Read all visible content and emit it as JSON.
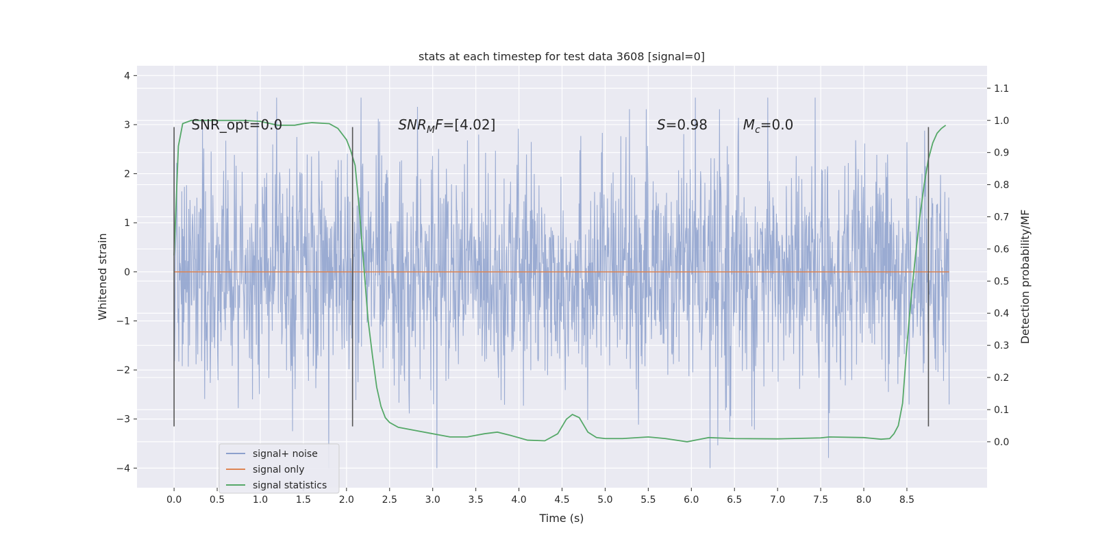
{
  "chart_data": {
    "type": "line",
    "title": "stats at each timestep for test data 3608 [signal=0]",
    "xlabel": "Time (s)",
    "ylabel": "Whitened strain",
    "y2label": "Detection probability/MF",
    "xlim": [
      -0.43,
      9.43
    ],
    "ylim": [
      -4.4,
      4.2
    ],
    "y2lim": [
      -0.143,
      1.17
    ],
    "x_ticks": [
      0.0,
      0.5,
      1.0,
      1.5,
      2.0,
      2.5,
      3.0,
      3.5,
      4.0,
      4.5,
      5.0,
      5.5,
      6.0,
      6.5,
      7.0,
      7.5,
      8.0,
      8.5
    ],
    "y_ticks": [
      -4,
      -3,
      -2,
      -1,
      0,
      1,
      2,
      3,
      4
    ],
    "y2_ticks": [
      0.0,
      0.1,
      0.2,
      0.3,
      0.4,
      0.5,
      0.6,
      0.7,
      0.8,
      0.9,
      1.0,
      1.1
    ],
    "grid": true,
    "legend_position": "lower-left",
    "legend": [
      {
        "name": "signal+ noise",
        "color": "#8ca0cc"
      },
      {
        "name": "signal only",
        "color": "#dd8452"
      },
      {
        "name": "signal statistics",
        "color": "#55a868"
      }
    ],
    "annotations": [
      {
        "text": "SNR_opt=0.0",
        "x": 0.2,
        "y": 3.0
      },
      {
        "prefix": "SNR",
        "sub": "M",
        "suffix": "F=[4.02]",
        "x": 2.6,
        "y": 3.0
      },
      {
        "prefix": "S",
        "sub": "",
        "suffix": "=0.98",
        "x": 5.6,
        "y": 3.0
      },
      {
        "prefix": "M",
        "sub": "c",
        "suffix": "=0.0",
        "x": 6.6,
        "y": 3.0
      }
    ],
    "vertical_markers": [
      {
        "x": 0.0,
        "y_range": [
          -3.15,
          2.95
        ]
      },
      {
        "x": 2.07,
        "y_range": [
          -3.15,
          2.95
        ]
      },
      {
        "x": 8.75,
        "y_range": [
          -3.15,
          2.95
        ]
      }
    ],
    "series": [
      {
        "name": "signal+ noise",
        "axis": "left",
        "color": "#8ca0cc",
        "x_range": [
          0.0,
          8.99
        ],
        "typical_envelope": [
          -1.8,
          1.8
        ],
        "peak_max": 3.55,
        "peak_min": -4.0
      },
      {
        "name": "signal only",
        "axis": "left",
        "color": "#dd8452",
        "x": [
          0.0,
          8.99
        ],
        "y": [
          0.0,
          0.0
        ]
      },
      {
        "name": "signal statistics",
        "axis": "right",
        "color": "#55a868",
        "x": [
          0.0,
          0.05,
          0.1,
          0.15,
          0.2,
          0.3,
          0.5,
          0.8,
          1.0,
          1.2,
          1.4,
          1.5,
          1.6,
          1.8,
          1.9,
          2.0,
          2.05,
          2.1,
          2.15,
          2.2,
          2.25,
          2.3,
          2.35,
          2.4,
          2.45,
          2.5,
          2.6,
          2.8,
          3.0,
          3.2,
          3.4,
          3.6,
          3.75,
          3.9,
          4.1,
          4.3,
          4.45,
          4.55,
          4.62,
          4.7,
          4.8,
          4.9,
          5.0,
          5.2,
          5.5,
          5.7,
          5.95,
          6.2,
          6.5,
          7.0,
          7.5,
          7.6,
          8.0,
          8.2,
          8.3,
          8.35,
          8.4,
          8.45,
          8.5,
          8.55,
          8.6,
          8.65,
          8.7,
          8.75,
          8.8,
          8.85,
          8.9,
          8.95
        ],
        "y": [
          0.58,
          0.92,
          0.99,
          0.995,
          1.0,
          1.0,
          1.0,
          1.0,
          0.997,
          0.985,
          0.985,
          0.99,
          0.993,
          0.99,
          0.975,
          0.94,
          0.905,
          0.86,
          0.72,
          0.55,
          0.38,
          0.27,
          0.17,
          0.11,
          0.075,
          0.06,
          0.045,
          0.035,
          0.025,
          0.015,
          0.015,
          0.025,
          0.03,
          0.02,
          0.005,
          0.003,
          0.025,
          0.07,
          0.085,
          0.075,
          0.03,
          0.013,
          0.01,
          0.01,
          0.015,
          0.01,
          0.0,
          0.013,
          0.01,
          0.009,
          0.012,
          0.015,
          0.013,
          0.008,
          0.01,
          0.025,
          0.05,
          0.12,
          0.3,
          0.45,
          0.58,
          0.7,
          0.8,
          0.88,
          0.93,
          0.96,
          0.975,
          0.985
        ]
      }
    ]
  }
}
